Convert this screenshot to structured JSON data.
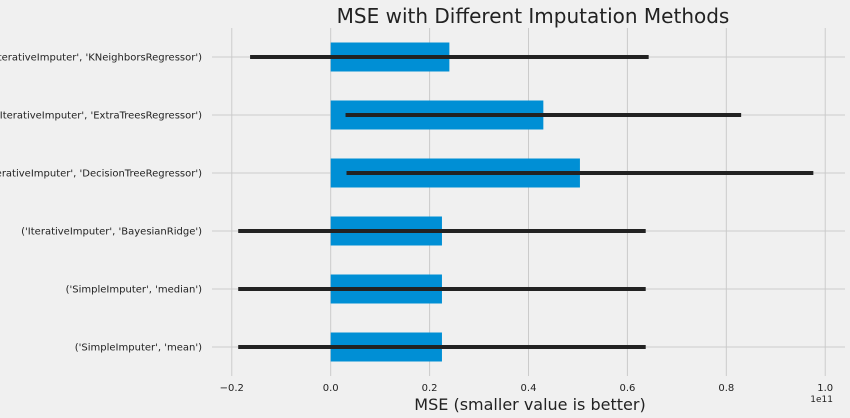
{
  "chart_data": {
    "type": "bar",
    "orientation": "horizontal",
    "title": "MSE with Different Imputation Methods",
    "xlabel": "MSE (smaller value is better)",
    "ylabel": "",
    "x_offset_label": "1e11",
    "categories": [
      "('SimpleImputer', 'mean')",
      "('SimpleImputer', 'median')",
      "('IterativeImputer', 'BayesianRidge')",
      "('IterativeImputer', 'DecisionTreeRegressor')",
      "('IterativeImputer', 'ExtraTreesRegressor')",
      "('IterativeImputer', 'KNeighborsRegressor')"
    ],
    "values": [
      0.225,
      0.225,
      0.225,
      0.504,
      0.43,
      0.24
    ],
    "errors": [
      0.412,
      0.412,
      0.412,
      0.472,
      0.4,
      0.403
    ],
    "x_ticks": [
      -0.2,
      0.0,
      0.2,
      0.4,
      0.6,
      0.8,
      1.0
    ],
    "x_tick_labels": [
      "−0.2",
      "0.0",
      "0.2",
      "0.4",
      "0.6",
      "0.8",
      "1.0"
    ],
    "xlim": [
      -0.24,
      1.04
    ],
    "grid": true,
    "legend": "none",
    "colors": {
      "bar": "#008fd5",
      "error": "#222222",
      "background": "#f0f0f0",
      "grid": "#cbcbcb"
    }
  }
}
